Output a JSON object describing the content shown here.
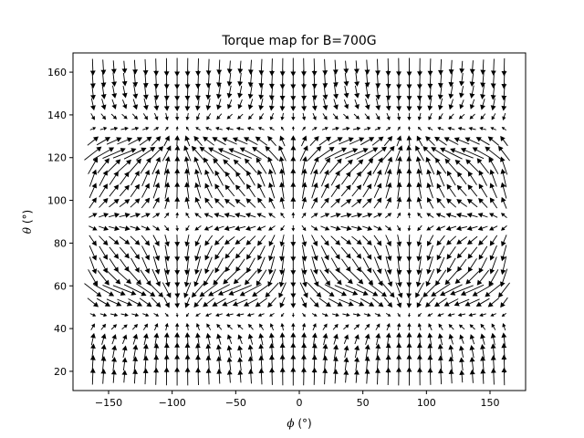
{
  "chart_data": {
    "type": "quiver",
    "title": "Torque map for B=700G",
    "xlabel": {
      "symbol": "ϕ",
      "unit": " (°)"
    },
    "ylabel": {
      "symbol": "θ",
      "unit": " (°)"
    },
    "xlim": [
      -178,
      178
    ],
    "ylim": [
      11,
      169
    ],
    "xticks": [
      -150,
      -100,
      -50,
      0,
      50,
      100,
      150
    ],
    "yticks": [
      20,
      40,
      60,
      80,
      100,
      120,
      140,
      160
    ],
    "phi_grid": {
      "start": -162.5,
      "step": 8.3,
      "count": 40
    },
    "theta_grid": {
      "start": 17.5,
      "step": 5.8,
      "count": 26
    },
    "field_model": {
      "comment": "Arrow direction/magnitude reproduced from torque pattern",
      "phi_sources": [
        -140,
        45,
        137
      ],
      "phi_sinks": [
        -47,
        45
      ],
      "theta_sources": [
        57,
        123
      ],
      "theta_sinks": [
        90
      ]
    },
    "arrow_color": "#000000",
    "grid": false,
    "legend": "none"
  }
}
